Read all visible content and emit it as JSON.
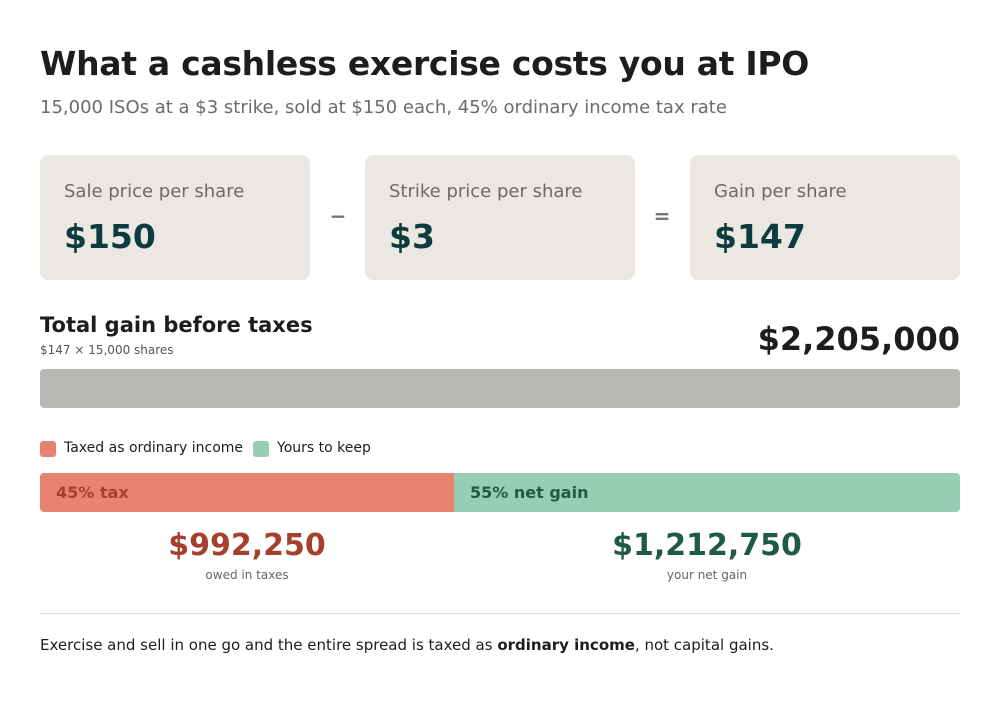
{
  "header": {
    "title": "What a cashless exercise costs you at IPO",
    "subtitle": "15,000 ISOs at a $3 strike, sold at $150 each, 45% ordinary income tax rate"
  },
  "cards": [
    {
      "label": "Sale price per share",
      "value": "$150"
    },
    {
      "label": "Strike price per share",
      "value": "$3"
    },
    {
      "label": "Gain per share",
      "value": "$147"
    }
  ],
  "operators": [
    "−",
    "="
  ],
  "total": {
    "title": "Total gain before taxes",
    "formula": "$147 × 15,000 shares",
    "amount": "$2,205,000"
  },
  "split": {
    "segments": [
      {
        "name": "Taxed as ordinary income",
        "color": "#e8836f",
        "text_color": "#a5402c",
        "share": 45,
        "label": "45% tax",
        "amount": "$992,250",
        "caption": "owed in taxes"
      },
      {
        "name": "Yours to keep",
        "color": "#96cdb3",
        "text_color": "#1e5b44",
        "share": 55,
        "label": "55% net gain",
        "amount": "$1,212,750",
        "caption": "your net gain"
      }
    ]
  },
  "footer": {
    "before": "Exercise and sell in one go and the entire spread is taxed as ",
    "bold": "ordinary income",
    "after": ", not capital gains."
  }
}
